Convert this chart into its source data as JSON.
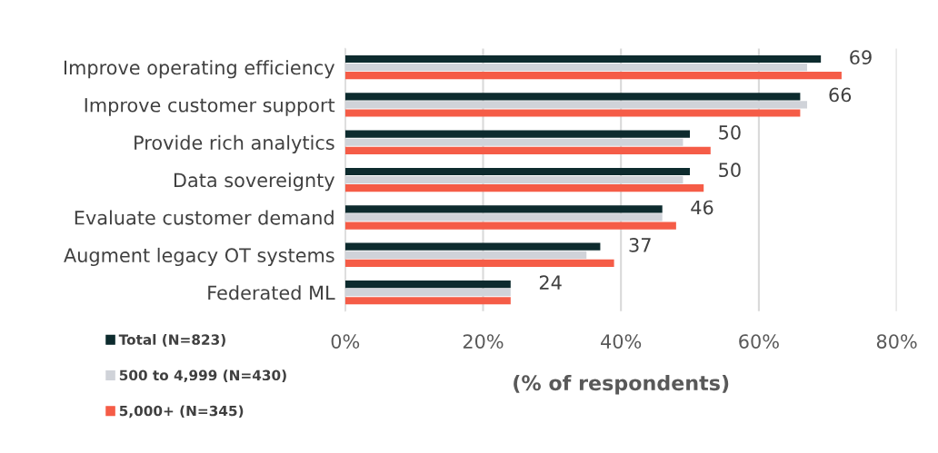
{
  "chart_data": {
    "type": "bar",
    "orientation": "horizontal",
    "xlabel": "(% of respondents)",
    "categories": [
      "Improve operating efficiency",
      "Improve customer support",
      "Provide rich analytics",
      "Data sovereignty",
      "Evaluate customer demand",
      "Augment legacy OT systems",
      "Federated ML"
    ],
    "series": [
      {
        "name": "Total (N=823)",
        "color": "#0d2b2e",
        "values": [
          69,
          66,
          50,
          50,
          46,
          37,
          24
        ],
        "value_labels": [
          "69",
          "66",
          "50",
          "50",
          "46",
          "37",
          "24"
        ]
      },
      {
        "name": "500 to 4,999 (N=430)",
        "color": "#d0d3d9",
        "values": [
          67,
          67,
          49,
          49,
          46,
          35,
          24
        ]
      },
      {
        "name": "5,000+ (N=345)",
        "color": "#f55c47",
        "values": [
          72,
          66,
          53,
          52,
          48,
          39,
          24
        ]
      }
    ],
    "xlim": [
      0,
      80
    ],
    "xticks": [
      {
        "value": 0,
        "label": "0%"
      },
      {
        "value": 20,
        "label": "20%"
      },
      {
        "value": 40,
        "label": "40%"
      },
      {
        "value": 60,
        "label": "60%"
      },
      {
        "value": 80,
        "label": "80%"
      }
    ],
    "grid": "x",
    "legend": "bottom left"
  }
}
